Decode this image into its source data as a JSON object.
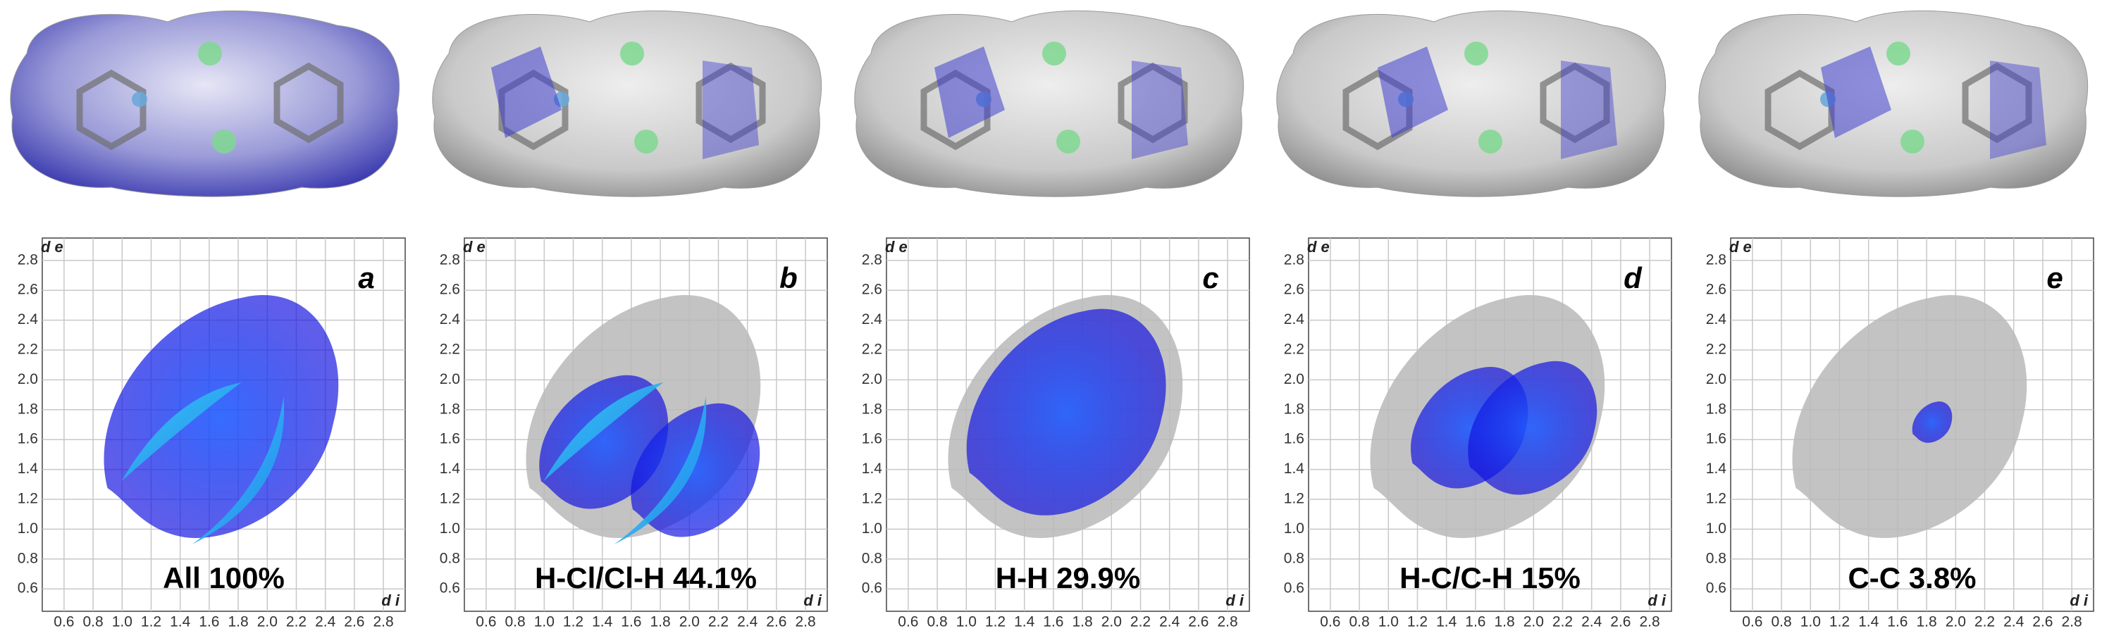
{
  "chart_data": [
    {
      "type": "scatter",
      "panel": "a",
      "label": "All 100%",
      "x_label": "d i",
      "y_label": "d e",
      "xlim": [
        0.45,
        2.95
      ],
      "ylim": [
        0.45,
        2.95
      ],
      "xticks": [
        0.6,
        0.8,
        {
          "value": 1,
          "label": "1.0"
        },
        1.2,
        1.4,
        1.6,
        1.8,
        {
          "value": 2,
          "label": "2.0"
        },
        2.2,
        2.4,
        2.6,
        2.8
      ],
      "yticks": [
        2.8,
        2.6,
        2.4,
        2.2,
        {
          "value": 2,
          "label": "2.0"
        },
        1.8,
        1.6,
        1.4,
        1.2,
        {
          "value": 1,
          "label": "1.0"
        },
        0.8,
        0.6
      ],
      "grid": true
    },
    {
      "type": "scatter",
      "panel": "b",
      "label": "H-Cl/Cl-H 44.1%",
      "x_label": "d i",
      "y_label": "d e",
      "xlim": [
        0.45,
        2.95
      ],
      "ylim": [
        0.45,
        2.95
      ],
      "xticks": [
        0.6,
        0.8,
        {
          "value": 1,
          "label": "1.0"
        },
        1.2,
        1.4,
        1.6,
        1.8,
        {
          "value": 2,
          "label": "2.0"
        },
        2.2,
        2.4,
        2.6,
        2.8
      ],
      "yticks": [
        2.8,
        2.6,
        2.4,
        2.2,
        {
          "value": 2,
          "label": "2.0"
        },
        1.8,
        1.6,
        1.4,
        1.2,
        {
          "value": 1,
          "label": "1.0"
        },
        0.8,
        0.6
      ],
      "grid": true
    },
    {
      "type": "scatter",
      "panel": "c",
      "label": "H-H 29.9%",
      "x_label": "d i",
      "y_label": "d e",
      "xlim": [
        0.45,
        2.95
      ],
      "ylim": [
        0.45,
        2.95
      ],
      "xticks": [
        0.6,
        0.8,
        {
          "value": 1,
          "label": "1.0"
        },
        1.2,
        1.4,
        1.6,
        1.8,
        {
          "value": 2,
          "label": "2.0"
        },
        2.2,
        2.4,
        2.6,
        2.8
      ],
      "yticks": [
        2.8,
        2.6,
        2.4,
        2.2,
        {
          "value": 2,
          "label": "2.0"
        },
        1.8,
        1.6,
        1.4,
        1.2,
        {
          "value": 1,
          "label": "1.0"
        },
        0.8,
        0.6
      ],
      "grid": true
    },
    {
      "type": "scatter",
      "panel": "d",
      "label": "H-C/C-H 15%",
      "x_label": "d i",
      "y_label": "d e",
      "xlim": [
        0.45,
        2.95
      ],
      "ylim": [
        0.45,
        2.95
      ],
      "xticks": [
        0.6,
        0.8,
        {
          "value": 1,
          "label": "1.0"
        },
        1.2,
        1.4,
        1.6,
        1.8,
        {
          "value": 2,
          "label": "2.0"
        },
        2.2,
        2.4,
        2.6,
        2.8
      ],
      "yticks": [
        2.8,
        2.6,
        2.4,
        2.2,
        {
          "value": 2,
          "label": "2.0"
        },
        1.8,
        1.6,
        1.4,
        1.2,
        {
          "value": 1,
          "label": "1.0"
        },
        0.8,
        0.6
      ],
      "grid": true
    },
    {
      "type": "scatter",
      "panel": "e",
      "label": "C-C 3.8%",
      "x_label": "d i",
      "y_label": "d e",
      "xlim": [
        0.45,
        2.95
      ],
      "ylim": [
        0.45,
        2.95
      ],
      "xticks": [
        0.6,
        0.8,
        {
          "value": 1,
          "label": "1.0"
        },
        1.2,
        1.4,
        1.6,
        1.8,
        {
          "value": 2,
          "label": "2.0"
        },
        2.2,
        2.4,
        2.6,
        2.8
      ],
      "yticks": [
        2.8,
        2.6,
        2.4,
        2.2,
        {
          "value": 2,
          "label": "2.0"
        },
        1.8,
        1.6,
        1.4,
        1.2,
        {
          "value": 1,
          "label": "1.0"
        },
        0.8,
        0.6
      ],
      "grid": true
    }
  ]
}
